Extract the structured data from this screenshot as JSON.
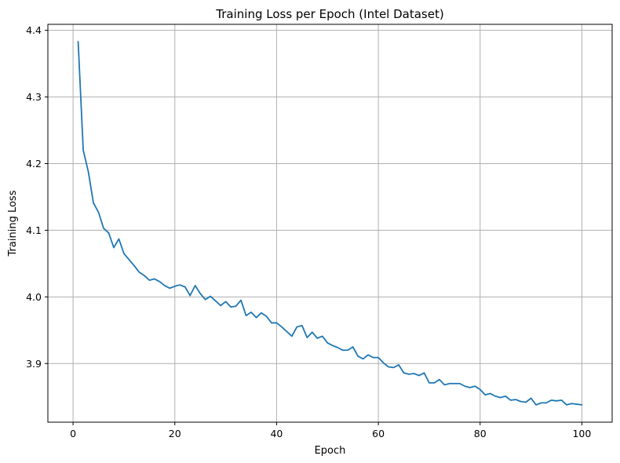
{
  "chart_data": {
    "type": "line",
    "title": "Training Loss per Epoch (Intel Dataset)",
    "xlabel": "Epoch",
    "ylabel": "Training Loss",
    "xlim": [
      -4.95,
      105.95
    ],
    "ylim": [
      3.812,
      4.409
    ],
    "x_ticks": [
      0,
      20,
      40,
      60,
      80,
      100
    ],
    "x_tick_labels": [
      "0",
      "20",
      "40",
      "60",
      "80",
      "100"
    ],
    "y_ticks": [
      3.9,
      4.0,
      4.1,
      4.2,
      4.3,
      4.4
    ],
    "y_tick_labels": [
      "3.9",
      "4.0",
      "4.1",
      "4.2",
      "4.3",
      "4.4"
    ],
    "grid": true,
    "colors": {
      "line": "#1f77b4",
      "grid": "#b0b0b0"
    },
    "series": [
      {
        "x": [
          1,
          2,
          3,
          4,
          5,
          6,
          7,
          8,
          9,
          10,
          11,
          12,
          13,
          14,
          15,
          16,
          17,
          18,
          19,
          20,
          21,
          22,
          23,
          24,
          25,
          26,
          27,
          28,
          29,
          30,
          31,
          32,
          33,
          34,
          35,
          36,
          37,
          38,
          39,
          40,
          41,
          42,
          43,
          44,
          45,
          46,
          47,
          48,
          49,
          50,
          51,
          52,
          53,
          54,
          55,
          56,
          57,
          58,
          59,
          60,
          61,
          62,
          63,
          64,
          65,
          66,
          67,
          68,
          69,
          70,
          71,
          72,
          73,
          74,
          75,
          76,
          77,
          78,
          79,
          80,
          81,
          82,
          83,
          84,
          85,
          86,
          87,
          88,
          89,
          90,
          91,
          92,
          93,
          94,
          95,
          96,
          97,
          98,
          99,
          100
        ],
        "values": [
          4.383,
          4.22,
          4.188,
          4.141,
          4.127,
          4.103,
          4.096,
          4.074,
          4.087,
          4.065,
          4.056,
          4.047,
          4.037,
          4.032,
          4.025,
          4.027,
          4.023,
          4.017,
          4.013,
          4.016,
          4.018,
          4.015,
          4.002,
          4.017,
          4.005,
          3.996,
          4.001,
          3.994,
          3.987,
          3.993,
          3.985,
          3.986,
          3.995,
          3.972,
          3.977,
          3.969,
          3.976,
          3.971,
          3.961,
          3.961,
          3.955,
          3.948,
          3.941,
          3.955,
          3.957,
          3.939,
          3.947,
          3.938,
          3.941,
          3.931,
          3.927,
          3.924,
          3.92,
          3.92,
          3.925,
          3.911,
          3.907,
          3.913,
          3.909,
          3.909,
          3.901,
          3.895,
          3.894,
          3.898,
          3.886,
          3.884,
          3.885,
          3.882,
          3.886,
          3.871,
          3.871,
          3.876,
          3.868,
          3.87,
          3.87,
          3.87,
          3.866,
          3.864,
          3.866,
          3.861,
          3.853,
          3.855,
          3.851,
          3.849,
          3.851,
          3.845,
          3.846,
          3.843,
          3.842,
          3.848,
          3.838,
          3.841,
          3.841,
          3.845,
          3.844,
          3.845,
          3.838,
          3.84,
          3.839,
          3.838
        ]
      }
    ]
  }
}
